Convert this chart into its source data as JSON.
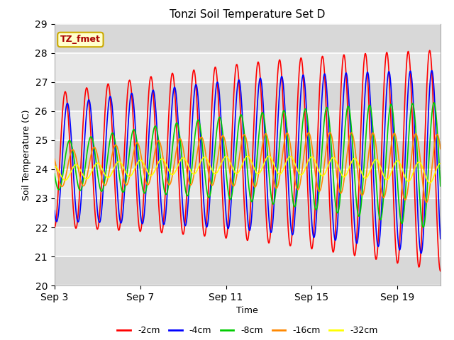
{
  "title": "Tonzi Soil Temperature Set D",
  "xlabel": "Time",
  "ylabel": "Soil Temperature (C)",
  "ylim": [
    20.0,
    29.0
  ],
  "yticks": [
    20.0,
    21.0,
    22.0,
    23.0,
    24.0,
    25.0,
    26.0,
    27.0,
    28.0,
    29.0
  ],
  "xtick_labels": [
    "Sep 3",
    "Sep 7",
    "Sep 11",
    "Sep 15",
    "Sep 19"
  ],
  "xtick_positions": [
    0,
    4,
    8,
    12,
    16
  ],
  "n_days": 18,
  "pts_per_day": 48,
  "series_order": [
    "-2cm",
    "-4cm",
    "-8cm",
    "-16cm",
    "-32cm"
  ],
  "series": {
    "-2cm": {
      "color": "#ff0000",
      "mean": 24.3,
      "amp_start": 2.3,
      "amp_end": 3.8,
      "lag": 0.0
    },
    "-4cm": {
      "color": "#0000ff",
      "mean": 24.2,
      "amp_start": 2.0,
      "amp_end": 3.2,
      "lag": 0.1
    },
    "-8cm": {
      "color": "#00cc00",
      "mean": 24.1,
      "amp_start": 0.8,
      "amp_end": 2.2,
      "lag": 0.2
    },
    "-16cm": {
      "color": "#ff8800",
      "mean": 24.0,
      "amp_start": 0.6,
      "amp_end": 1.2,
      "lag": 0.35
    },
    "-32cm": {
      "color": "#ffff00",
      "mean": 23.85,
      "amp_start": 0.25,
      "amp_end": 0.35,
      "lag": 0.5
    }
  },
  "legend_label": "TZ_fmet",
  "legend_bg": "#ffffcc",
  "legend_border": "#ccaa00",
  "bg_color": "#e0e0e0",
  "grid_color": "#ffffff",
  "linewidth": 1.2,
  "stripe_color1": "#d8d8d8",
  "stripe_color2": "#e8e8e8"
}
